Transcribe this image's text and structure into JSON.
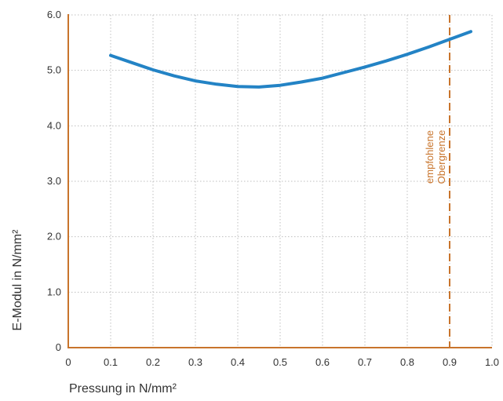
{
  "chart_data": {
    "type": "line",
    "title": "",
    "xlabel": "Pressung in N/mm²",
    "ylabel": "E-Modul in N/mm²",
    "xlim": [
      0,
      1.0
    ],
    "ylim": [
      0,
      6.0
    ],
    "grid": true,
    "x_ticks": [
      "0",
      "0.1",
      "0.2",
      "0.3",
      "0.4",
      "0.5",
      "0.6",
      "0.7",
      "0.8",
      "0.9",
      "1.0"
    ],
    "y_ticks": [
      "0",
      "1.0",
      "2.0",
      "3.0",
      "4.0",
      "5.0",
      "6.0"
    ],
    "series": [
      {
        "x": [
          0.1,
          0.15,
          0.2,
          0.25,
          0.3,
          0.35,
          0.4,
          0.45,
          0.5,
          0.55,
          0.6,
          0.65,
          0.7,
          0.75,
          0.8,
          0.85,
          0.9,
          0.95
        ],
        "y": [
          5.27,
          5.14,
          5.01,
          4.9,
          4.81,
          4.75,
          4.71,
          4.7,
          4.73,
          4.79,
          4.86,
          4.96,
          5.06,
          5.17,
          5.29,
          5.42,
          5.56,
          5.7
        ],
        "color": "#2383c5"
      }
    ],
    "reference_line": {
      "x": 0.9,
      "color": "#c8742c",
      "label_line1": "empfohlene",
      "label_line2": "Obergrenze"
    },
    "axis_color": "#c8742c",
    "grid_color": "#bfbfbf"
  }
}
